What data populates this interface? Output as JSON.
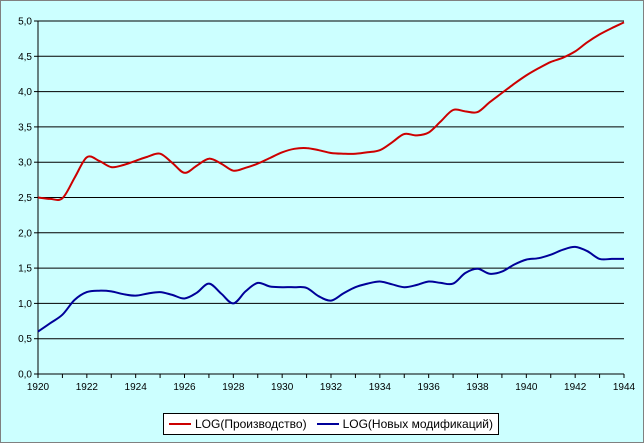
{
  "chart_data": {
    "type": "line",
    "title": "",
    "xlabel": "",
    "ylabel": "",
    "xlim": [
      1920,
      1944
    ],
    "ylim": [
      0,
      5
    ],
    "x_ticks": [
      "1920",
      "1922",
      "1924",
      "1926",
      "1928",
      "1930",
      "1932",
      "1934",
      "1936",
      "1938",
      "1940",
      "1942",
      "1944"
    ],
    "y_ticks": [
      "0,0",
      "0,5",
      "1,0",
      "1,5",
      "2,0",
      "2,5",
      "3,0",
      "3,5",
      "4,0",
      "4,5",
      "5,0"
    ],
    "grid": "horizontal",
    "legend_position": "bottom",
    "series": [
      {
        "name": "LOG(Производство)",
        "color": "#cc0000",
        "points": [
          [
            1920,
            2.5
          ],
          [
            1920.5,
            2.48
          ],
          [
            1921,
            2.49
          ],
          [
            1921.5,
            2.78
          ],
          [
            1922,
            3.07
          ],
          [
            1922.5,
            3.02
          ],
          [
            1923,
            2.93
          ],
          [
            1923.5,
            2.96
          ],
          [
            1924,
            3.02
          ],
          [
            1924.5,
            3.08
          ],
          [
            1925,
            3.12
          ],
          [
            1925.5,
            2.99
          ],
          [
            1926,
            2.85
          ],
          [
            1926.5,
            2.95
          ],
          [
            1927,
            3.05
          ],
          [
            1927.5,
            2.98
          ],
          [
            1928,
            2.88
          ],
          [
            1928.5,
            2.92
          ],
          [
            1929,
            2.98
          ],
          [
            1929.5,
            3.06
          ],
          [
            1930,
            3.14
          ],
          [
            1930.5,
            3.19
          ],
          [
            1931,
            3.2
          ],
          [
            1931.5,
            3.17
          ],
          [
            1932,
            3.13
          ],
          [
            1932.5,
            3.12
          ],
          [
            1933,
            3.12
          ],
          [
            1933.5,
            3.14
          ],
          [
            1934,
            3.17
          ],
          [
            1934.5,
            3.28
          ],
          [
            1935,
            3.4
          ],
          [
            1935.5,
            3.38
          ],
          [
            1936,
            3.42
          ],
          [
            1936.5,
            3.58
          ],
          [
            1937,
            3.74
          ],
          [
            1937.5,
            3.72
          ],
          [
            1938,
            3.71
          ],
          [
            1938.5,
            3.85
          ],
          [
            1939,
            3.98
          ],
          [
            1939.5,
            4.11
          ],
          [
            1940,
            4.23
          ],
          [
            1940.5,
            4.33
          ],
          [
            1941,
            4.42
          ],
          [
            1941.5,
            4.48
          ],
          [
            1942,
            4.57
          ],
          [
            1942.5,
            4.7
          ],
          [
            1943,
            4.81
          ],
          [
            1943.5,
            4.9
          ],
          [
            1944,
            4.98
          ]
        ]
      },
      {
        "name": "LOG(Новых модификаций)",
        "color": "#000099",
        "points": [
          [
            1920,
            0.6
          ],
          [
            1920.5,
            0.72
          ],
          [
            1921,
            0.84
          ],
          [
            1921.5,
            1.05
          ],
          [
            1922,
            1.16
          ],
          [
            1922.5,
            1.18
          ],
          [
            1923,
            1.17
          ],
          [
            1923.5,
            1.13
          ],
          [
            1924,
            1.11
          ],
          [
            1924.5,
            1.14
          ],
          [
            1925,
            1.16
          ],
          [
            1925.5,
            1.12
          ],
          [
            1926,
            1.07
          ],
          [
            1926.5,
            1.15
          ],
          [
            1927,
            1.28
          ],
          [
            1927.5,
            1.14
          ],
          [
            1928,
            1.0
          ],
          [
            1928.5,
            1.17
          ],
          [
            1929,
            1.29
          ],
          [
            1929.5,
            1.24
          ],
          [
            1930,
            1.23
          ],
          [
            1930.5,
            1.23
          ],
          [
            1931,
            1.22
          ],
          [
            1931.5,
            1.1
          ],
          [
            1932,
            1.04
          ],
          [
            1932.5,
            1.14
          ],
          [
            1933,
            1.23
          ],
          [
            1933.5,
            1.28
          ],
          [
            1934,
            1.31
          ],
          [
            1934.5,
            1.27
          ],
          [
            1935,
            1.23
          ],
          [
            1935.5,
            1.26
          ],
          [
            1936,
            1.31
          ],
          [
            1936.5,
            1.29
          ],
          [
            1937,
            1.28
          ],
          [
            1937.5,
            1.43
          ],
          [
            1938,
            1.49
          ],
          [
            1938.5,
            1.42
          ],
          [
            1939,
            1.45
          ],
          [
            1939.5,
            1.55
          ],
          [
            1940,
            1.62
          ],
          [
            1940.5,
            1.64
          ],
          [
            1941,
            1.69
          ],
          [
            1941.5,
            1.76
          ],
          [
            1942,
            1.8
          ],
          [
            1942.5,
            1.74
          ],
          [
            1943,
            1.63
          ],
          [
            1943.5,
            1.63
          ],
          [
            1944,
            1.63
          ]
        ]
      }
    ]
  }
}
